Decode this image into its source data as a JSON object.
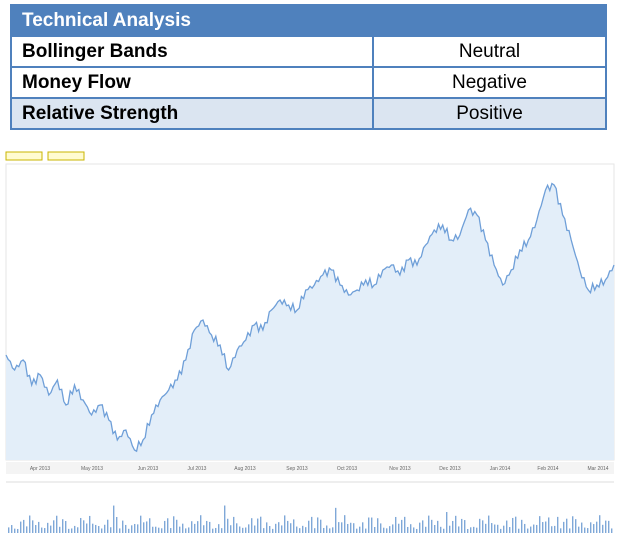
{
  "table": {
    "title": "Technical Analysis",
    "rows": [
      [
        "Bollinger Bands",
        "Neutral"
      ],
      [
        "Money Flow",
        "Negative"
      ],
      [
        "Relative Strength",
        "Positive"
      ]
    ]
  },
  "chart": {
    "x_labels": [
      "Apr 2013",
      "May 2013",
      "Jun 2013",
      "Jul 2013",
      "Aug 2013",
      "Sep 2013",
      "Oct 2013",
      "Nov 2013",
      "Dec 2013",
      "Jan 2014",
      "Feb 2014",
      "Mar 2014"
    ]
  }
}
